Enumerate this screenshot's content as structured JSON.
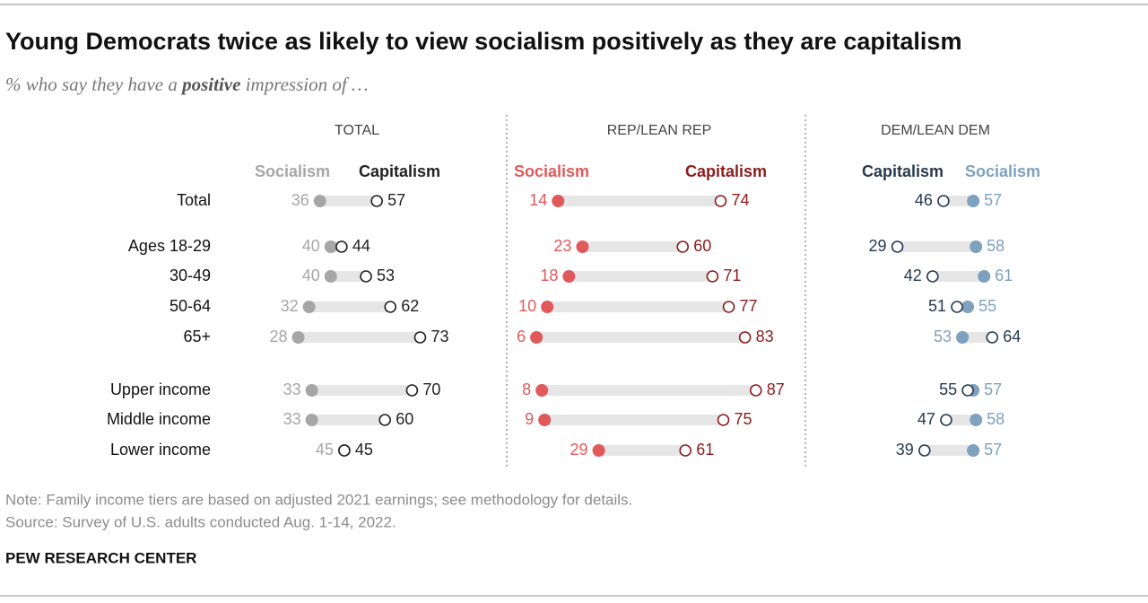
{
  "chart_data": {
    "type": "dot",
    "title": "Young Democrats twice as likely to view socialism positively as they are capitalism",
    "subtitle": [
      "% who say they have a ",
      "positive",
      " impression of …"
    ],
    "categories": [
      "Total",
      "Ages 18-29",
      "30-49",
      "50-64",
      "65+",
      "Upper income",
      "Middle income",
      "Lower income"
    ],
    "panels": [
      {
        "title": "TOTAL",
        "xlim": [
          0,
          100
        ],
        "series": [
          {
            "name": "Socialism",
            "color": "#a6a6a6",
            "filled": true,
            "values": [
              36,
              40,
              40,
              32,
              28,
              33,
              33,
              45
            ]
          },
          {
            "name": "Capitalism",
            "color": "#222222",
            "filled": false,
            "values": [
              57,
              44,
              53,
              62,
              73,
              70,
              60,
              45
            ]
          }
        ]
      },
      {
        "title": "REP/LEAN REP",
        "xlim": [
          0,
          100
        ],
        "series": [
          {
            "name": "Socialism",
            "color": "#e0595b",
            "filled": true,
            "values": [
              14,
              23,
              18,
              10,
              6,
              8,
              9,
              29
            ]
          },
          {
            "name": "Capitalism",
            "color": "#8b1c1c",
            "filled": false,
            "values": [
              74,
              60,
              71,
              77,
              83,
              87,
              75,
              61
            ]
          }
        ]
      },
      {
        "title": "DEM/LEAN DEM",
        "xlim": [
          0,
          100
        ],
        "series": [
          {
            "name": "Capitalism",
            "color": "#26394f",
            "filled": false,
            "values": [
              46,
              29,
              42,
              51,
              64,
              55,
              47,
              39
            ]
          },
          {
            "name": "Socialism",
            "color": "#7ea1be",
            "filled": true,
            "values": [
              57,
              58,
              61,
              55,
              53,
              57,
              58,
              57
            ]
          }
        ]
      }
    ]
  },
  "notes": {
    "note": "Note: Family income tiers are based on adjusted 2021 earnings; see methodology for details.",
    "source": "Source: Survey of U.S. adults conducted Aug. 1-14, 2022.",
    "credit": "PEW RESEARCH CENTER"
  }
}
